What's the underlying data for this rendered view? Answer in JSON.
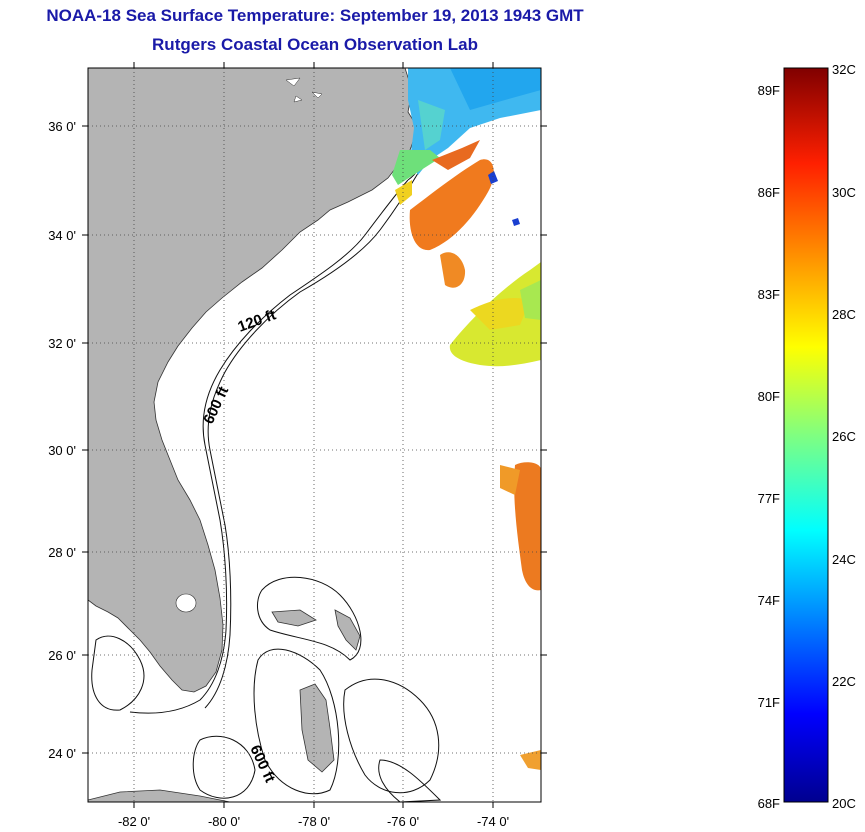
{
  "header": {
    "title": "NOAA-18 Sea Surface Temperature:  September 19, 2013 1943 GMT",
    "subtitle": "Rutgers Coastal Ocean Observation Lab"
  },
  "map": {
    "lat_labels": [
      "36 0'",
      "34 0'",
      "32 0'",
      "30 0'",
      "28 0'",
      "26 0'",
      "24 0'"
    ],
    "lon_labels": [
      "-82 0'",
      "-80 0'",
      "-78 0'",
      "-76 0'",
      "-74 0'"
    ],
    "contour_labels": [
      "120 ft",
      "600 ft",
      "600 ft"
    ],
    "land_color": "#b4b4b4",
    "ocean_color": "#ffffff"
  },
  "colorbar": {
    "range_c": [
      20,
      32
    ],
    "fahrenheit_labels": [
      "89F",
      "86F",
      "83F",
      "80F",
      "77F",
      "74F",
      "71F",
      "68F"
    ],
    "celsius_labels": [
      "32C",
      "30C",
      "28C",
      "26C",
      "24C",
      "22C",
      "20C"
    ],
    "colormap": "jet"
  }
}
